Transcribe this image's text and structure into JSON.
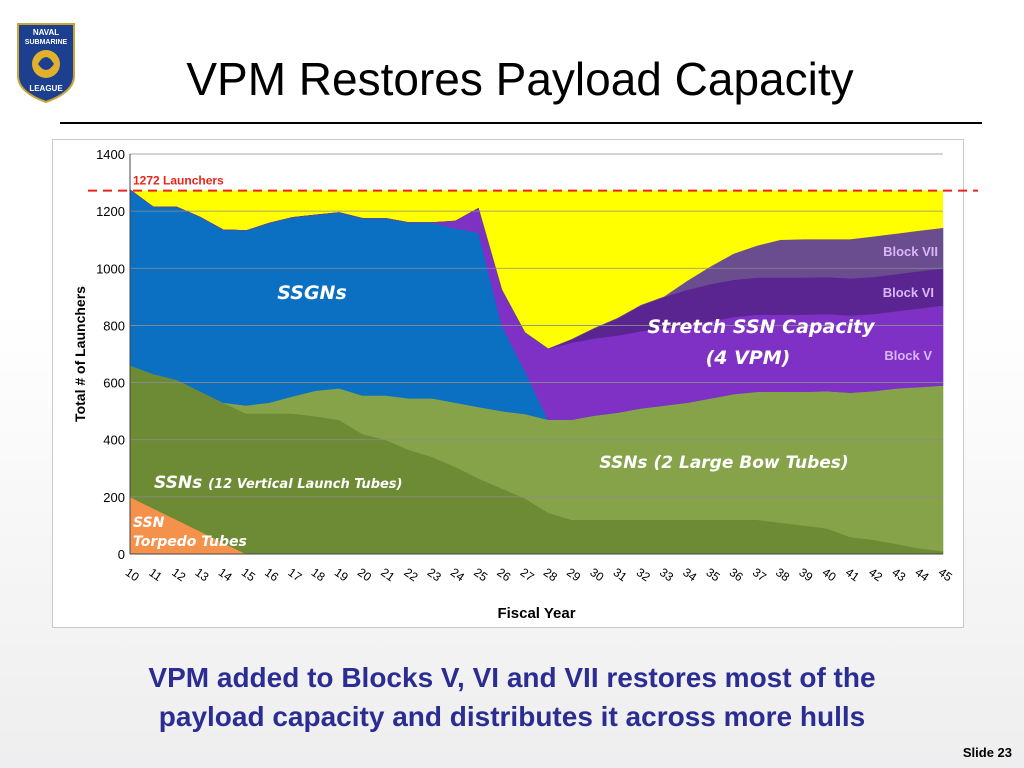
{
  "slide": {
    "title": "VPM Restores Payload Capacity",
    "caption_line1": "VPM added to Blocks V, VI and VII restores most of the",
    "caption_line2": "payload capacity and distributes it across more hulls",
    "slide_number": "Slide 23",
    "logo": {
      "line1": "NAVAL",
      "line2": "SUBMARINE",
      "line3": "LEAGUE",
      "colors": {
        "shield": "#1d3f8f",
        "emblem": "#e1b12c"
      }
    }
  },
  "chart_data": {
    "type": "area",
    "stacked": true,
    "xlabel": "Fiscal  Year",
    "ylabel": "Total  # of Launchers",
    "ylim": [
      0,
      1400
    ],
    "yticks": [
      0,
      200,
      400,
      600,
      800,
      1000,
      1200,
      1400
    ],
    "grid": "horizontal",
    "categories": [
      "10",
      "11",
      "12",
      "13",
      "14",
      "15",
      "16",
      "17",
      "18",
      "19",
      "20",
      "21",
      "22",
      "23",
      "24",
      "25",
      "26",
      "27",
      "28",
      "29",
      "30",
      "31",
      "32",
      "33",
      "34",
      "35",
      "36",
      "37",
      "38",
      "39",
      "40",
      "41",
      "42",
      "43",
      "44",
      "45"
    ],
    "reference_line": {
      "value": 1272,
      "label": "1272 Launchers",
      "color": "#e8241b"
    },
    "series": [
      {
        "name": "SSN Torpedo Tubes",
        "color": "#f4924b",
        "values": [
          200,
          160,
          120,
          80,
          40,
          0,
          0,
          0,
          0,
          0,
          0,
          0,
          0,
          0,
          0,
          0,
          0,
          0,
          0,
          0,
          0,
          0,
          0,
          0,
          0,
          0,
          0,
          0,
          0,
          0,
          0,
          0,
          0,
          0,
          0,
          0
        ]
      },
      {
        "name": "SSNs (12 Vertical Launch Tubes)",
        "color": "#6d8b34",
        "values": [
          460,
          470,
          490,
          490,
          490,
          492,
          492,
          492,
          482,
          470,
          420,
          400,
          365,
          340,
          305,
          265,
          230,
          195,
          145,
          120,
          120,
          120,
          120,
          120,
          120,
          120,
          120,
          120,
          110,
          100,
          90,
          60,
          50,
          35,
          20,
          10
        ]
      },
      {
        "name": "SSNs (2 Large Bow Tubes)",
        "color": "#86a34a",
        "values": [
          0,
          0,
          0,
          0,
          0,
          28,
          38,
          60,
          90,
          110,
          135,
          155,
          180,
          205,
          225,
          250,
          270,
          295,
          325,
          350,
          365,
          375,
          390,
          400,
          410,
          425,
          440,
          448,
          458,
          468,
          480,
          505,
          520,
          545,
          565,
          580
        ]
      },
      {
        "name": "SSGNs",
        "color": "#0b70c2",
        "values": [
          615,
          585,
          605,
          610,
          605,
          612,
          628,
          626,
          615,
          615,
          620,
          620,
          615,
          615,
          610,
          610,
          300,
          150,
          0,
          0,
          0,
          0,
          0,
          0,
          0,
          0,
          0,
          0,
          0,
          0,
          0,
          0,
          0,
          0,
          0,
          0
        ]
      },
      {
        "name": "Block V",
        "color": "#7f31c5",
        "values": [
          0,
          0,
          0,
          0,
          0,
          0,
          0,
          0,
          0,
          0,
          0,
          0,
          0,
          0,
          25,
          85,
          125,
          135,
          248,
          270,
          270,
          270,
          270,
          270,
          270,
          270,
          270,
          270,
          270,
          270,
          270,
          270,
          270,
          270,
          275,
          280
        ]
      },
      {
        "name": "Block VI",
        "color": "#5b2591",
        "values": [
          0,
          0,
          0,
          0,
          0,
          0,
          0,
          0,
          0,
          0,
          0,
          0,
          0,
          0,
          0,
          0,
          0,
          0,
          0,
          10,
          35,
          60,
          90,
          110,
          125,
          130,
          130,
          130,
          130,
          130,
          130,
          130,
          130,
          130,
          130,
          130
        ]
      },
      {
        "name": "Block VII",
        "color": "#6a4d8e",
        "values": [
          0,
          0,
          0,
          0,
          0,
          0,
          0,
          0,
          0,
          0,
          0,
          0,
          0,
          0,
          0,
          0,
          0,
          0,
          0,
          0,
          0,
          0,
          0,
          0,
          30,
          60,
          90,
          110,
          130,
          132,
          130,
          135,
          140,
          140,
          140,
          140
        ]
      }
    ],
    "annotations": {
      "ssgns": "SSGNs",
      "stretch_line1": "Stretch SSN Capacity",
      "stretch_line2": "(4 VPM)",
      "ssn_bow": "SSNs (2 Large Bow Tubes)",
      "ssn_vls_main": "SSNs",
      "ssn_vls_sub": "(12 Vertical Launch Tubes)",
      "torpedo_line1": "SSN",
      "torpedo_line2": "Torpedo Tubes",
      "block_v": "Block V",
      "block_vi": "Block VI",
      "block_vii": "Block VII"
    },
    "colors": {
      "gap_fill": "#ffff00",
      "block_label": "#d9b6f5"
    }
  }
}
